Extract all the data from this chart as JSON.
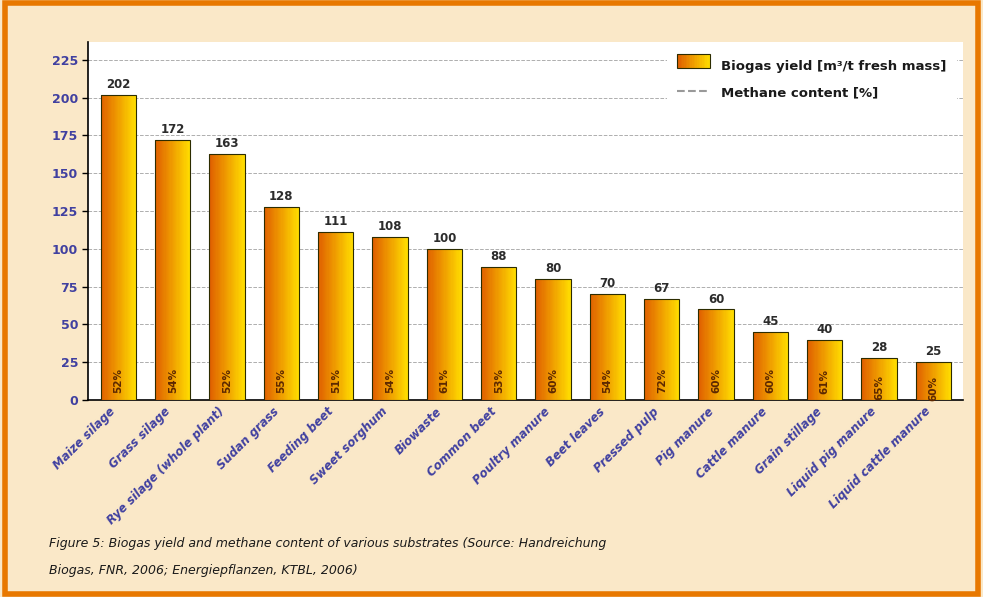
{
  "categories": [
    "Maize silage",
    "Grass silage",
    "Rye silage (whole plant)",
    "Sudan grass",
    "Feeding beet",
    "Sweet sorghum",
    "Biowaste",
    "Common beet",
    "Poultry manure",
    "Beet leaves",
    "Pressed pulp",
    "Pig manure",
    "Cattle manure",
    "Grain stillage",
    "Liquid pig manure",
    "Liquid cattle manure"
  ],
  "biogas_yield": [
    202,
    172,
    163,
    128,
    111,
    108,
    100,
    88,
    80,
    70,
    67,
    60,
    45,
    40,
    28,
    25
  ],
  "methane_content": [
    "52%",
    "54%",
    "52%",
    "55%",
    "51%",
    "54%",
    "61%",
    "53%",
    "60%",
    "54%",
    "72%",
    "60%",
    "60%",
    "61%",
    "65%",
    "60%"
  ],
  "bar_color_main": "#F5A800",
  "bar_color_left": "#E06000",
  "bar_color_right": "#FFDD00",
  "bar_edge_color": "#2C2C00",
  "background_outer": "#FAE8C8",
  "background_inner": "#FFFFFF",
  "border_color": "#E87800",
  "legend_label_1": "Biogas yield [m³/t fresh mass]",
  "legend_label_2": "Methane content [%]",
  "ylabel_yticks": [
    0,
    25,
    50,
    75,
    100,
    125,
    150,
    175,
    200,
    225
  ],
  "grid_color": "#999999",
  "caption_line1": "Figure 5: Biogas yield and methane content of various substrates (Source: Handreichung",
  "caption_line2": "Biogas, FNR, 2006; Energiepflanzen, KTBL, 2006)",
  "tick_label_color": "#4040A0",
  "methane_text_color": "#5C2800",
  "value_label_color": "#2C2C2C",
  "axis_color": "#000000"
}
